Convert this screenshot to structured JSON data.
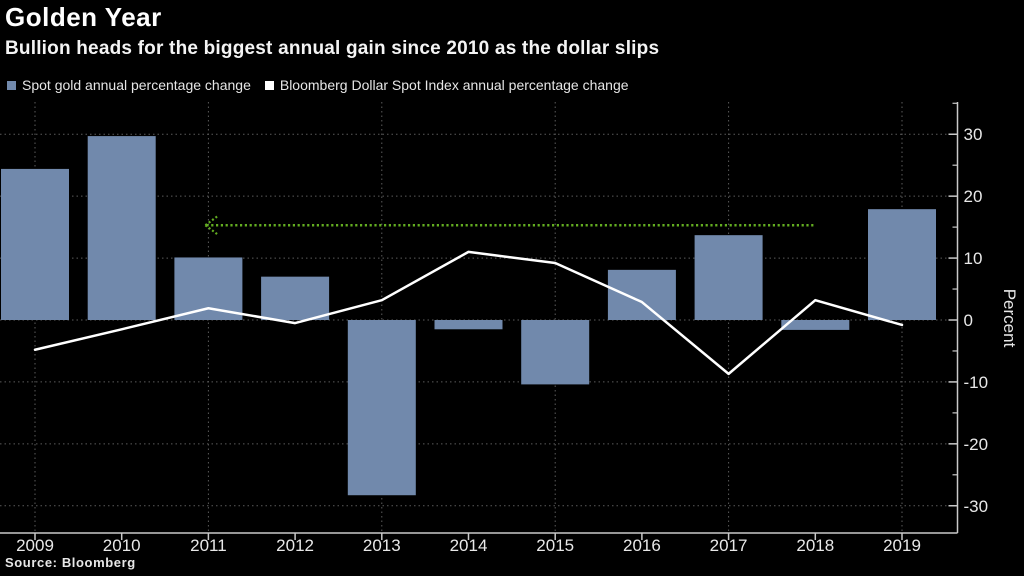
{
  "header": {
    "title": "Golden Year",
    "subtitle": "Bullion heads for the biggest annual gain since 2010 as the dollar slips"
  },
  "legend": [
    {
      "label": "Spot gold annual percentage change",
      "color": "#7189ac"
    },
    {
      "label": "Bloomberg Dollar Spot Index annual percentage change",
      "color": "#ffffff"
    }
  ],
  "source": "Source: Bloomberg",
  "colors": {
    "background": "#000000",
    "bar": "#7189ac",
    "line": "#ffffff",
    "annotation_green": "#63ad21",
    "axis": "#c9c9c9",
    "grid": "#5b5b5b",
    "text": "#e8e8e8"
  },
  "chart_data": {
    "type": "combo-bar-line",
    "title": "Golden Year",
    "subtitle": "Bullion heads for the biggest annual gain since 2010 as the dollar slips",
    "categories": [
      "2009",
      "2010",
      "2011",
      "2012",
      "2013",
      "2014",
      "2015",
      "2016",
      "2017",
      "2018",
      "2019"
    ],
    "series": [
      {
        "name": "Spot gold annual percentage change",
        "type": "bar",
        "color": "#7189ac",
        "values": [
          24.4,
          29.7,
          10.1,
          7.0,
          -28.3,
          -1.5,
          -10.4,
          8.1,
          13.7,
          -1.6,
          17.9
        ]
      },
      {
        "name": "Bloomberg Dollar Spot Index annual percentage change",
        "type": "line",
        "color": "#ffffff",
        "values": [
          -4.8,
          -1.5,
          1.9,
          -0.5,
          3.2,
          11.0,
          9.2,
          2.9,
          -8.7,
          3.2,
          -0.8
        ]
      }
    ],
    "annotation": {
      "shape": "dotted-arrow-left",
      "color": "#63ad21",
      "y": 15.3,
      "from_year": "2011",
      "to_year": "2018"
    },
    "xlabel": "",
    "ylabel": "Percent",
    "ylim": [
      -34.4,
      35.2
    ],
    "yticks_major": [
      30,
      20,
      10,
      0,
      -10,
      -20,
      -30
    ],
    "yticks_minor": [
      35,
      25,
      15,
      5,
      -5,
      -15,
      -25
    ],
    "x_gridline_years": [
      "2009",
      "2011",
      "2013",
      "2015",
      "2017",
      "2019"
    ],
    "grid": true,
    "y_axis_side": "right",
    "legend_position": "top-left"
  }
}
